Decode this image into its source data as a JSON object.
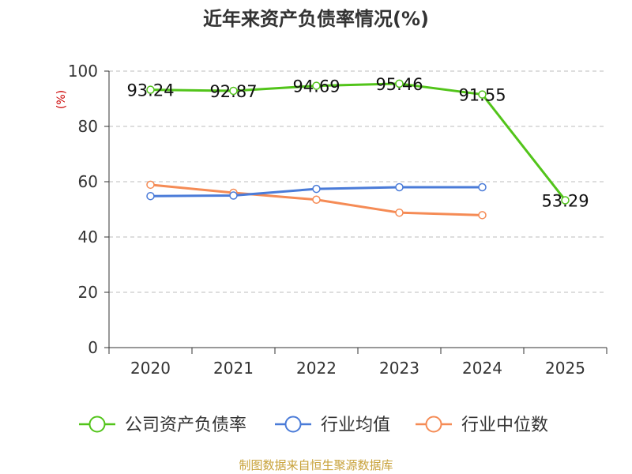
{
  "chart_data": {
    "type": "line",
    "title": "近年来资产负债率情况(%)",
    "ylabel": "(%)",
    "xlabel": "",
    "categories": [
      "2020",
      "2021",
      "2022",
      "2023",
      "2024",
      "2025"
    ],
    "ylim": [
      0,
      100
    ],
    "yticks": [
      0,
      20,
      40,
      60,
      80,
      100
    ],
    "grid": true,
    "legend_position": "bottom",
    "series": [
      {
        "name": "公司资产负债率",
        "color": "#52c41a",
        "values": [
          93.24,
          92.87,
          94.69,
          95.46,
          91.55,
          53.29
        ],
        "labels": [
          "93.24",
          "92.87",
          "94.69",
          "95.46",
          "91.55",
          "53.29"
        ]
      },
      {
        "name": "行业均值",
        "color": "#4a7bd8",
        "values": [
          54.8,
          55.0,
          57.4,
          58.0,
          58.0,
          null
        ]
      },
      {
        "name": "行业中位数",
        "color": "#f58b55",
        "values": [
          58.9,
          56.0,
          53.5,
          48.8,
          47.9,
          null
        ]
      }
    ]
  },
  "source": "制图数据来自恒生聚源数据库"
}
